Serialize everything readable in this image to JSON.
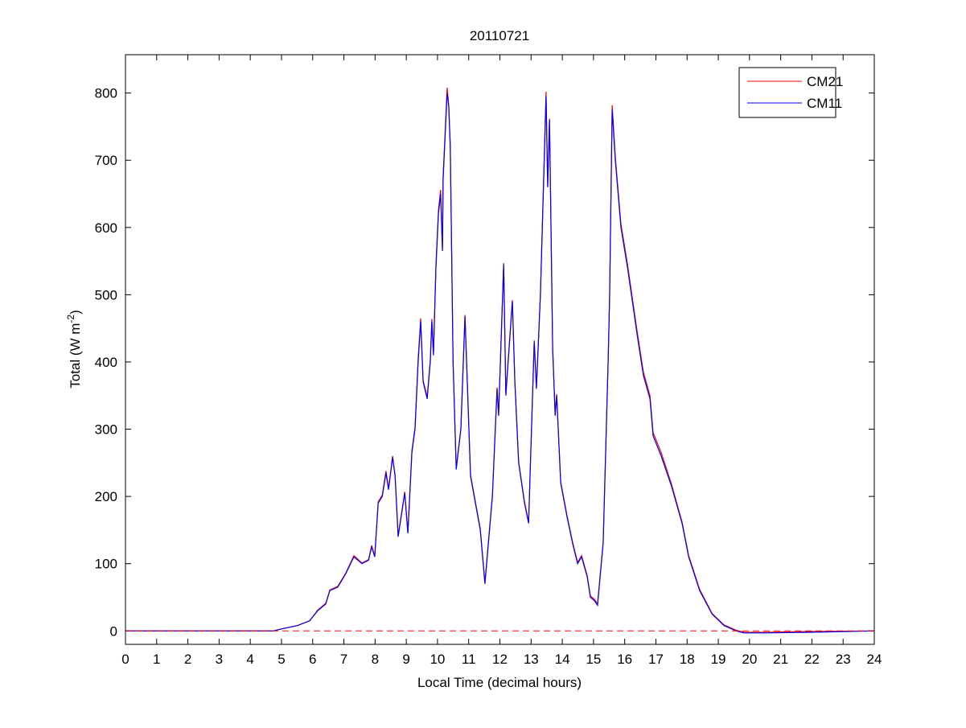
{
  "chart_data": {
    "type": "line",
    "title": "20110721",
    "xlabel": "Local Time (decimal hours)",
    "ylabel": {
      "main": "Total (W m",
      "sup": "-2",
      "close": ")"
    },
    "xlim": [
      0,
      24
    ],
    "ylim": [
      -20,
      857
    ],
    "xticks": [
      0,
      1,
      2,
      3,
      4,
      5,
      6,
      7,
      8,
      9,
      10,
      11,
      12,
      13,
      14,
      15,
      16,
      17,
      18,
      19,
      20,
      21,
      22,
      23,
      24
    ],
    "yticks": [
      0,
      100,
      200,
      300,
      400,
      500,
      600,
      700,
      800
    ],
    "grid": false,
    "legend": "top-right",
    "zero_line": {
      "value": 0,
      "style": "dashed",
      "color": "#ff0000"
    },
    "x": [
      0,
      4.74,
      5.0,
      5.52,
      5.9,
      6.16,
      6.42,
      6.55,
      6.8,
      7.06,
      7.32,
      7.58,
      7.79,
      7.89,
      7.99,
      8.1,
      8.23,
      8.35,
      8.43,
      8.5,
      8.56,
      8.64,
      8.74,
      8.87,
      8.95,
      9.05,
      9.18,
      9.28,
      9.38,
      9.46,
      9.54,
      9.67,
      9.77,
      9.82,
      9.87,
      9.95,
      10.03,
      10.1,
      10.16,
      10.18,
      10.23,
      10.31,
      10.36,
      10.41,
      10.5,
      10.6,
      10.75,
      10.88,
      11.06,
      11.37,
      11.52,
      11.76,
      11.91,
      11.96,
      12.12,
      12.19,
      12.4,
      12.48,
      12.6,
      12.79,
      12.92,
      13.1,
      13.17,
      13.3,
      13.48,
      13.53,
      13.59,
      13.69,
      13.77,
      13.82,
      13.95,
      14.15,
      14.33,
      14.49,
      14.62,
      14.8,
      14.9,
      15.03,
      15.13,
      15.31,
      15.47,
      15.52,
      15.6,
      15.7,
      15.88,
      16.09,
      16.4,
      16.6,
      16.81,
      16.91,
      17.17,
      17.5,
      17.84,
      18.05,
      18.4,
      18.8,
      19.18,
      19.57,
      19.82,
      20.5,
      22,
      24
    ],
    "series": [
      {
        "name": "CM21",
        "color": "#ff0000",
        "values": [
          0,
          0,
          3,
          8,
          15,
          31,
          41,
          61,
          66,
          86,
          112,
          101,
          106,
          127,
          111,
          192,
          202,
          238,
          212,
          237,
          260,
          232,
          142,
          182,
          207,
          147,
          268,
          303,
          405,
          465,
          372,
          348,
          404,
          464,
          412,
          545,
          626,
          656,
          568,
          676,
          726,
          808,
          782,
          724,
          400,
          242,
          302,
          470,
          232,
          152,
          72,
          202,
          362,
          322,
          547,
          352,
          492,
          372,
          252,
          192,
          162,
          432,
          362,
          502,
          802,
          662,
          762,
          422,
          322,
          352,
          222,
          172,
          132,
          102,
          112,
          82,
          52,
          47,
          40,
          132,
          404,
          505,
          782,
          705,
          605,
          545,
          445,
          385,
          350,
          295,
          265,
          218,
          162,
          112,
          62,
          26,
          9,
          1,
          -2,
          -2,
          -1,
          0
        ]
      },
      {
        "name": "CM11",
        "color": "#0000ff",
        "values": [
          0,
          0,
          3,
          8,
          15,
          30,
          40,
          60,
          65,
          85,
          110,
          100,
          105,
          125,
          110,
          190,
          200,
          235,
          210,
          235,
          258,
          230,
          140,
          180,
          205,
          145,
          265,
          300,
          400,
          460,
          370,
          345,
          400,
          460,
          410,
          540,
          620,
          650,
          565,
          670,
          720,
          800,
          780,
          720,
          400,
          240,
          300,
          468,
          230,
          150,
          70,
          200,
          360,
          320,
          545,
          350,
          490,
          370,
          250,
          190,
          160,
          430,
          360,
          500,
          795,
          660,
          760,
          420,
          320,
          350,
          220,
          170,
          130,
          100,
          110,
          80,
          50,
          45,
          38,
          130,
          400,
          500,
          775,
          700,
          600,
          540,
          440,
          380,
          345,
          290,
          260,
          215,
          160,
          110,
          60,
          25,
          8,
          0,
          -3,
          -3,
          -2,
          0
        ]
      }
    ]
  }
}
